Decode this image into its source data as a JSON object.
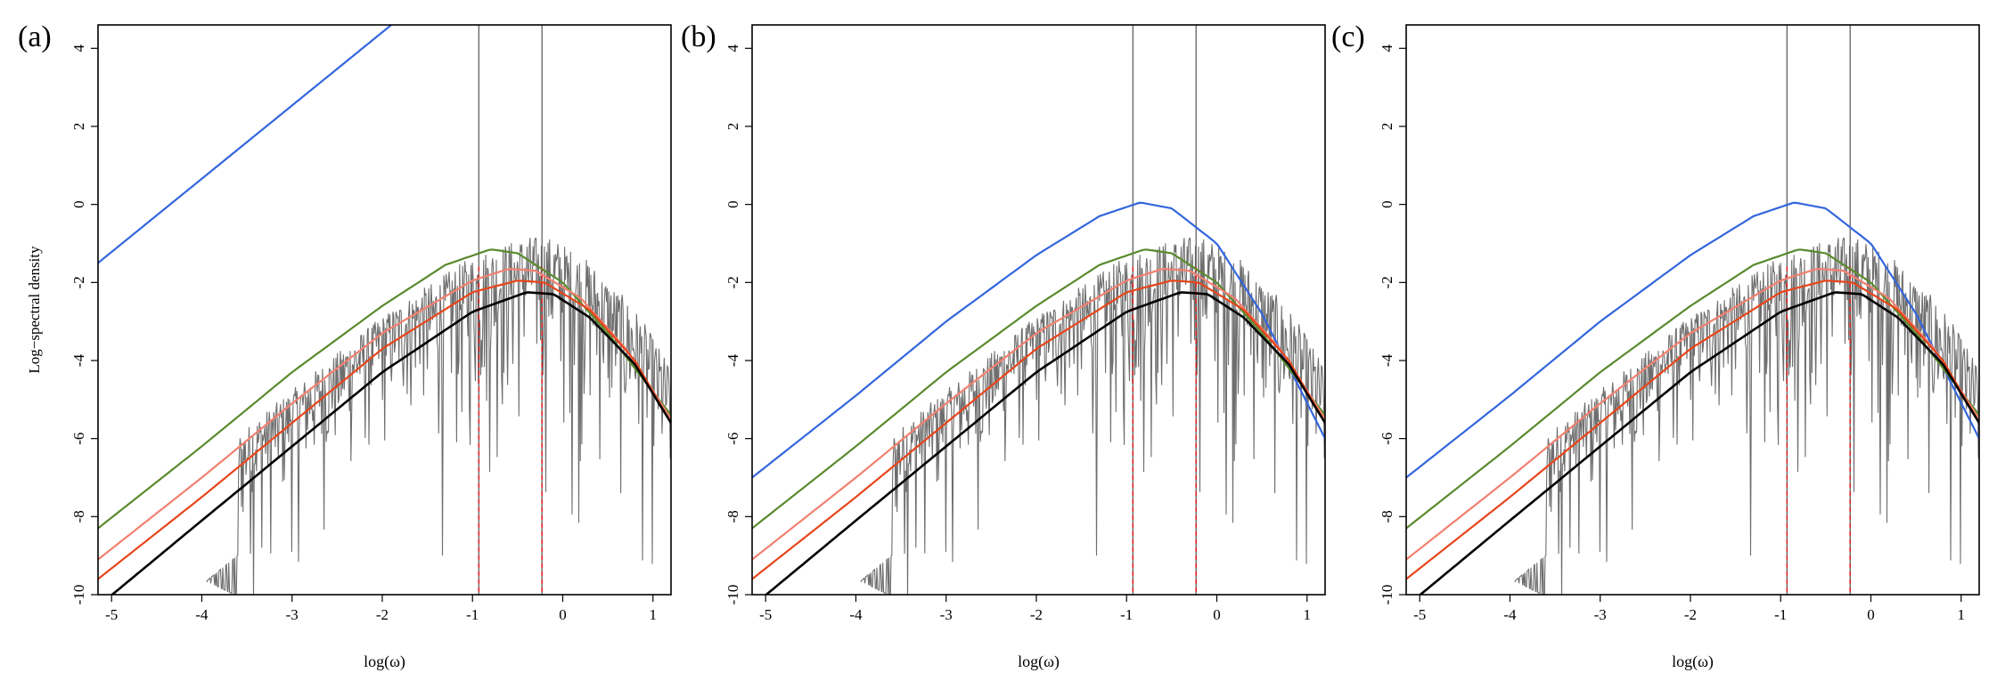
{
  "figure": {
    "panel_labels": [
      "(a)",
      "(b)",
      "(c)"
    ],
    "ylabel": "Log−spectral density",
    "xlabel": "log(ω)"
  },
  "colors": {
    "periodogram": "#6e6e6e",
    "blue": "#3366dd",
    "green": "#5a8a2e",
    "salmon": "#f28070",
    "orange_red": "#e8441a",
    "black": "#000000",
    "dashed_red": "#e02020"
  },
  "chart_data": [
    {
      "type": "line",
      "panel": "(a)",
      "xlim": [
        -5.15,
        1.2
      ],
      "ylim": [
        -10,
        4.6
      ],
      "x_ticks": [
        -5,
        -4,
        -3,
        -2,
        -1,
        0,
        1
      ],
      "y_ticks": [
        -10,
        -8,
        -6,
        -4,
        -2,
        0,
        2,
        4
      ],
      "vertical_lines": [
        -0.93,
        -0.23
      ],
      "series": [
        {
          "color": "blue",
          "points": [
            [
              -5.15,
              -1.5
            ],
            [
              -1.9,
              4.6
            ]
          ]
        },
        {
          "color": "green",
          "points": [
            [
              -5.15,
              -8.3
            ],
            [
              -4.0,
              -6.2
            ],
            [
              -3.0,
              -4.3
            ],
            [
              -2.0,
              -2.6
            ],
            [
              -1.3,
              -1.55
            ],
            [
              -0.8,
              -1.15
            ],
            [
              -0.5,
              -1.25
            ],
            [
              0.0,
              -2.0
            ],
            [
              0.5,
              -3.3
            ],
            [
              1.2,
              -5.4
            ]
          ]
        },
        {
          "color": "salmon",
          "points": [
            [
              -5.15,
              -9.1
            ],
            [
              -4.0,
              -7.0
            ],
            [
              -3.0,
              -5.1
            ],
            [
              -2.0,
              -3.3
            ],
            [
              -1.0,
              -1.95
            ],
            [
              -0.6,
              -1.65
            ],
            [
              -0.3,
              -1.7
            ],
            [
              0.2,
              -2.4
            ],
            [
              0.7,
              -3.7
            ],
            [
              1.2,
              -5.5
            ]
          ]
        },
        {
          "color": "orange_red",
          "points": [
            [
              -5.15,
              -9.6
            ],
            [
              -4.0,
              -7.5
            ],
            [
              -3.0,
              -5.6
            ],
            [
              -2.0,
              -3.7
            ],
            [
              -1.0,
              -2.25
            ],
            [
              -0.5,
              -1.95
            ],
            [
              -0.2,
              -2.0
            ],
            [
              0.3,
              -2.7
            ],
            [
              0.8,
              -4.0
            ],
            [
              1.2,
              -5.6
            ]
          ]
        },
        {
          "color": "black",
          "points": [
            [
              -5.15,
              -10.3
            ],
            [
              -4.0,
              -8.1
            ],
            [
              -3.0,
              -6.2
            ],
            [
              -2.0,
              -4.3
            ],
            [
              -1.0,
              -2.75
            ],
            [
              -0.4,
              -2.25
            ],
            [
              -0.1,
              -2.3
            ],
            [
              0.3,
              -2.9
            ],
            [
              0.8,
              -4.1
            ],
            [
              1.2,
              -5.6
            ]
          ]
        }
      ]
    },
    {
      "type": "line",
      "panel": "(b)",
      "xlim": [
        -5.15,
        1.2
      ],
      "ylim": [
        -10,
        4.6
      ],
      "x_ticks": [
        -5,
        -4,
        -3,
        -2,
        -1,
        0,
        1
      ],
      "y_ticks": [
        -10,
        -8,
        -6,
        -4,
        -2,
        0,
        2,
        4
      ],
      "vertical_lines": [
        -0.93,
        -0.23
      ],
      "series": [
        {
          "color": "blue",
          "points": [
            [
              -5.15,
              -7.0
            ],
            [
              -4.0,
              -4.9
            ],
            [
              -3.0,
              -3.0
            ],
            [
              -2.0,
              -1.3
            ],
            [
              -1.3,
              -0.3
            ],
            [
              -0.85,
              0.05
            ],
            [
              -0.5,
              -0.1
            ],
            [
              0.0,
              -1.0
            ],
            [
              0.5,
              -2.8
            ],
            [
              1.2,
              -6.0
            ]
          ]
        },
        {
          "color": "green",
          "points": [
            [
              -5.15,
              -8.3
            ],
            [
              -4.0,
              -6.2
            ],
            [
              -3.0,
              -4.3
            ],
            [
              -2.0,
              -2.6
            ],
            [
              -1.3,
              -1.55
            ],
            [
              -0.8,
              -1.15
            ],
            [
              -0.5,
              -1.25
            ],
            [
              0.0,
              -2.0
            ],
            [
              0.5,
              -3.3
            ],
            [
              1.2,
              -5.4
            ]
          ]
        },
        {
          "color": "salmon",
          "points": [
            [
              -5.15,
              -9.1
            ],
            [
              -4.0,
              -7.0
            ],
            [
              -3.0,
              -5.1
            ],
            [
              -2.0,
              -3.3
            ],
            [
              -1.0,
              -1.95
            ],
            [
              -0.6,
              -1.65
            ],
            [
              -0.3,
              -1.7
            ],
            [
              0.2,
              -2.4
            ],
            [
              0.7,
              -3.7
            ],
            [
              1.2,
              -5.5
            ]
          ]
        },
        {
          "color": "orange_red",
          "points": [
            [
              -5.15,
              -9.6
            ],
            [
              -4.0,
              -7.5
            ],
            [
              -3.0,
              -5.6
            ],
            [
              -2.0,
              -3.7
            ],
            [
              -1.0,
              -2.25
            ],
            [
              -0.5,
              -1.95
            ],
            [
              -0.2,
              -2.0
            ],
            [
              0.3,
              -2.7
            ],
            [
              0.8,
              -4.0
            ],
            [
              1.2,
              -5.6
            ]
          ]
        },
        {
          "color": "black",
          "points": [
            [
              -5.15,
              -10.3
            ],
            [
              -4.0,
              -8.1
            ],
            [
              -3.0,
              -6.2
            ],
            [
              -2.0,
              -4.3
            ],
            [
              -1.0,
              -2.75
            ],
            [
              -0.4,
              -2.25
            ],
            [
              -0.1,
              -2.3
            ],
            [
              0.3,
              -2.9
            ],
            [
              0.8,
              -4.1
            ],
            [
              1.2,
              -5.6
            ]
          ]
        }
      ]
    },
    {
      "type": "line",
      "panel": "(c)",
      "xlim": [
        -5.15,
        1.2
      ],
      "ylim": [
        -10,
        4.6
      ],
      "x_ticks": [
        -5,
        -4,
        -3,
        -2,
        -1,
        0,
        1
      ],
      "y_ticks": [
        -10,
        -8,
        -6,
        -4,
        -2,
        0,
        2,
        4
      ],
      "vertical_lines": [
        -0.93,
        -0.23
      ],
      "series": [
        {
          "color": "blue",
          "points": [
            [
              -5.15,
              -7.0
            ],
            [
              -4.0,
              -4.9
            ],
            [
              -3.0,
              -3.0
            ],
            [
              -2.0,
              -1.3
            ],
            [
              -1.3,
              -0.3
            ],
            [
              -0.85,
              0.05
            ],
            [
              -0.5,
              -0.1
            ],
            [
              0.0,
              -1.0
            ],
            [
              0.5,
              -2.8
            ],
            [
              1.2,
              -6.0
            ]
          ]
        },
        {
          "color": "green",
          "points": [
            [
              -5.15,
              -8.3
            ],
            [
              -4.0,
              -6.2
            ],
            [
              -3.0,
              -4.3
            ],
            [
              -2.0,
              -2.6
            ],
            [
              -1.3,
              -1.55
            ],
            [
              -0.8,
              -1.15
            ],
            [
              -0.5,
              -1.25
            ],
            [
              0.0,
              -2.0
            ],
            [
              0.5,
              -3.3
            ],
            [
              1.2,
              -5.4
            ]
          ]
        },
        {
          "color": "salmon",
          "points": [
            [
              -5.15,
              -9.1
            ],
            [
              -4.0,
              -7.0
            ],
            [
              -3.0,
              -5.1
            ],
            [
              -2.0,
              -3.3
            ],
            [
              -1.0,
              -1.95
            ],
            [
              -0.6,
              -1.65
            ],
            [
              -0.3,
              -1.7
            ],
            [
              0.2,
              -2.4
            ],
            [
              0.7,
              -3.7
            ],
            [
              1.2,
              -5.5
            ]
          ]
        },
        {
          "color": "orange_red",
          "points": [
            [
              -5.15,
              -9.6
            ],
            [
              -4.0,
              -7.5
            ],
            [
              -3.0,
              -5.6
            ],
            [
              -2.0,
              -3.7
            ],
            [
              -1.0,
              -2.25
            ],
            [
              -0.5,
              -1.95
            ],
            [
              -0.2,
              -2.0
            ],
            [
              0.3,
              -2.7
            ],
            [
              0.8,
              -4.0
            ],
            [
              1.2,
              -5.6
            ]
          ]
        },
        {
          "color": "black",
          "points": [
            [
              -5.15,
              -10.3
            ],
            [
              -4.0,
              -8.1
            ],
            [
              -3.0,
              -6.2
            ],
            [
              -2.0,
              -4.3
            ],
            [
              -1.0,
              -2.75
            ],
            [
              -0.4,
              -2.25
            ],
            [
              -0.1,
              -2.3
            ],
            [
              0.3,
              -2.9
            ],
            [
              0.8,
              -4.1
            ],
            [
              1.2,
              -5.6
            ]
          ]
        }
      ]
    }
  ]
}
